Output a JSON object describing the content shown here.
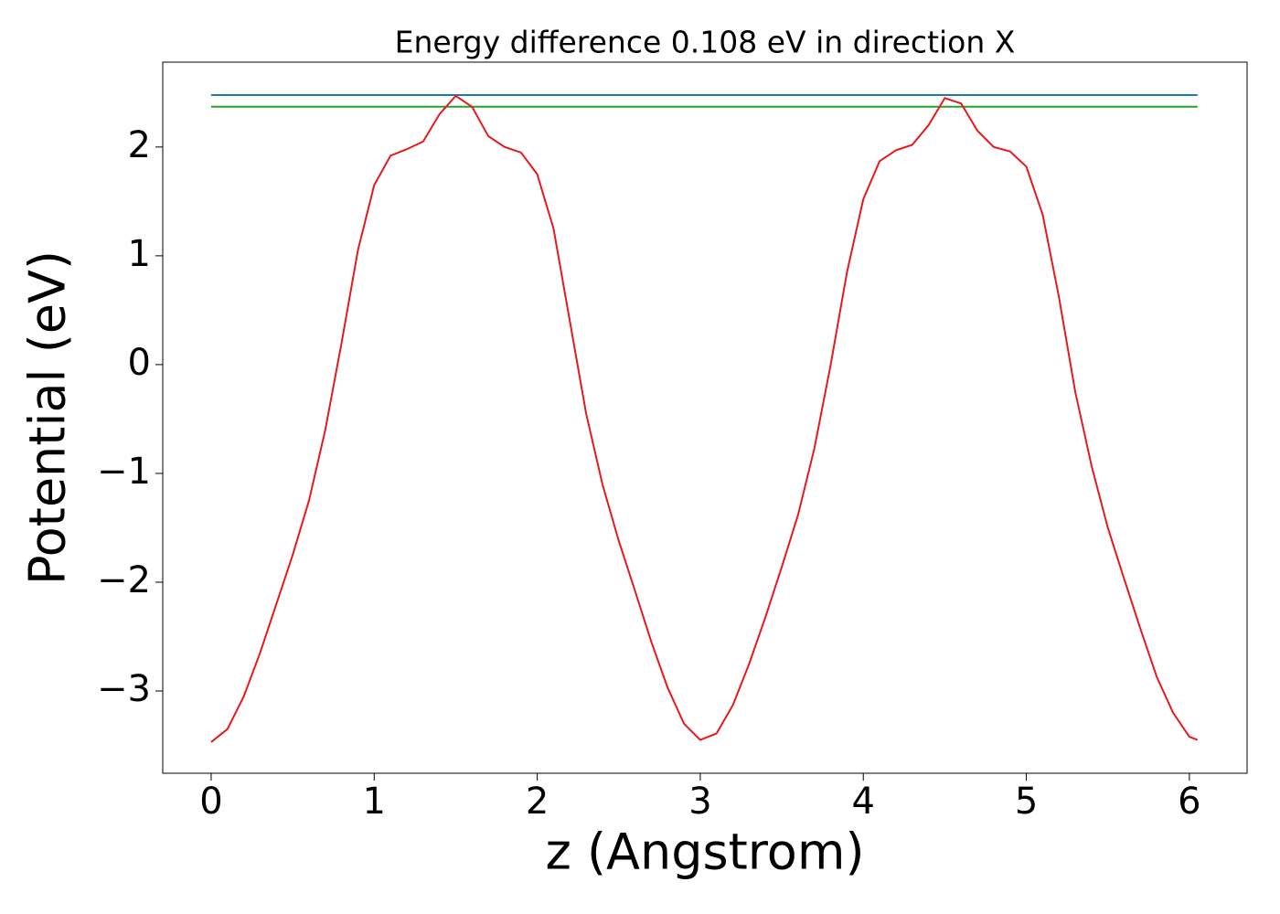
{
  "chart_data": {
    "type": "line",
    "title": "Energy difference 0.108 eV in direction X",
    "x_label": "z (Angstrom)",
    "y_label": "Potential (eV)",
    "xlim": [
      -0.297,
      6.354
    ],
    "ylim": [
      -3.756,
      2.78
    ],
    "xticks": [
      0,
      1,
      2,
      3,
      4,
      5,
      6
    ],
    "yticks": [
      {
        "value": -3,
        "label": "−3"
      },
      {
        "value": -2,
        "label": "−2"
      },
      {
        "value": -1,
        "label": "−1"
      },
      0,
      1,
      2
    ],
    "grid": false,
    "series": [
      {
        "color": "#1f77b4",
        "x": [
          0,
          6.05
        ],
        "values": [
          2.478,
          2.478
        ]
      },
      {
        "color": "#2ca02c",
        "x": [
          0,
          6.05
        ],
        "values": [
          2.37,
          2.37
        ]
      },
      {
        "color": "#e41a1c",
        "x": [
          0,
          0.1,
          0.2,
          0.3,
          0.4,
          0.5,
          0.6,
          0.7,
          0.8,
          0.9,
          1.0,
          1.1,
          1.2,
          1.3,
          1.4,
          1.5,
          1.6,
          1.7,
          1.8,
          1.9,
          2.0,
          2.1,
          2.2,
          2.3,
          2.4,
          2.5,
          2.6,
          2.7,
          2.8,
          2.9,
          3.0,
          3.1,
          3.2,
          3.3,
          3.4,
          3.5,
          3.6,
          3.7,
          3.8,
          3.9,
          4.0,
          4.1,
          4.2,
          4.3,
          4.4,
          4.5,
          4.6,
          4.7,
          4.8,
          4.9,
          5.0,
          5.1,
          5.2,
          5.3,
          5.4,
          5.5,
          5.6,
          5.7,
          5.8,
          5.9,
          6.0,
          6.05
        ],
        "values": [
          -3.47,
          -3.35,
          -3.05,
          -2.65,
          -2.2,
          -1.75,
          -1.25,
          -0.6,
          0.2,
          1.05,
          1.65,
          1.92,
          1.98,
          2.05,
          2.3,
          2.47,
          2.37,
          2.1,
          2.0,
          1.95,
          1.75,
          1.25,
          0.4,
          -0.45,
          -1.1,
          -1.62,
          -2.08,
          -2.55,
          -2.97,
          -3.3,
          -3.45,
          -3.39,
          -3.13,
          -2.75,
          -2.32,
          -1.86,
          -1.38,
          -0.77,
          0.0,
          0.85,
          1.52,
          1.87,
          1.97,
          2.02,
          2.2,
          2.45,
          2.4,
          2.15,
          2.0,
          1.96,
          1.82,
          1.38,
          0.62,
          -0.25,
          -0.93,
          -1.5,
          -1.97,
          -2.43,
          -2.87,
          -3.2,
          -3.42,
          -3.45
        ]
      }
    ]
  }
}
